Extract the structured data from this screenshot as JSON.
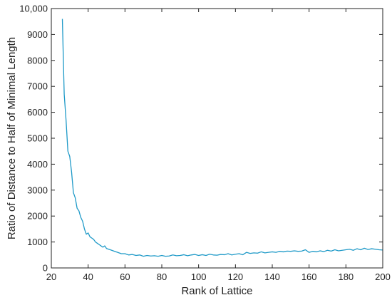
{
  "chart_data": {
    "type": "line",
    "title": "",
    "xlabel": "Rank of Lattice",
    "ylabel": "Ratio of Distance to Half of Minimal Length",
    "xlim": [
      20,
      200
    ],
    "ylim": [
      0,
      10000
    ],
    "xticks": [
      20,
      40,
      60,
      80,
      100,
      120,
      140,
      160,
      180,
      200
    ],
    "xtick_labels": [
      "20",
      "40",
      "60",
      "80",
      "100",
      "120",
      "140",
      "160",
      "180",
      "200"
    ],
    "yticks": [
      0,
      1000,
      2000,
      3000,
      4000,
      5000,
      6000,
      7000,
      8000,
      9000,
      10000
    ],
    "ytick_labels": [
      "0",
      "1000",
      "2000",
      "3000",
      "4000",
      "5000",
      "6000",
      "7000",
      "8000",
      "9000",
      "10,000"
    ],
    "grid": false,
    "legend": "none",
    "line_color": "#1f9ac8",
    "series": [
      {
        "x": [
          26,
          27,
          28,
          29,
          30,
          31,
          32,
          33,
          34,
          35,
          36,
          37,
          38,
          39,
          40,
          41,
          42,
          43,
          44,
          45,
          46,
          47,
          48,
          49,
          50,
          52,
          54,
          56,
          58,
          60,
          62,
          64,
          66,
          68,
          70,
          72,
          74,
          76,
          78,
          80,
          82,
          84,
          86,
          88,
          90,
          92,
          94,
          96,
          98,
          100,
          102,
          104,
          106,
          108,
          110,
          112,
          114,
          116,
          118,
          120,
          122,
          124,
          126,
          128,
          130,
          132,
          134,
          136,
          138,
          140,
          142,
          144,
          146,
          148,
          150,
          152,
          154,
          156,
          158,
          160,
          162,
          164,
          166,
          168,
          170,
          172,
          174,
          176,
          178,
          180,
          182,
          184,
          186,
          188,
          190,
          192,
          194,
          196,
          198,
          200
        ],
        "y": [
          9600,
          6700,
          5700,
          4500,
          4300,
          3700,
          2900,
          2700,
          2300,
          2200,
          1950,
          1800,
          1500,
          1300,
          1350,
          1200,
          1150,
          1100,
          1000,
          950,
          900,
          850,
          800,
          850,
          750,
          700,
          650,
          600,
          550,
          550,
          500,
          520,
          480,
          500,
          450,
          480,
          460,
          470,
          450,
          480,
          450,
          460,
          500,
          470,
          480,
          510,
          470,
          500,
          520,
          480,
          510,
          480,
          530,
          500,
          490,
          520,
          510,
          550,
          500,
          530,
          550,
          510,
          600,
          560,
          580,
          570,
          620,
          580,
          600,
          620,
          600,
          640,
          620,
          650,
          640,
          660,
          640,
          650,
          700,
          600,
          640,
          620,
          660,
          630,
          680,
          650,
          700,
          660,
          680,
          700,
          720,
          680,
          740,
          700,
          760,
          710,
          740,
          720,
          700,
          690
        ]
      }
    ]
  }
}
